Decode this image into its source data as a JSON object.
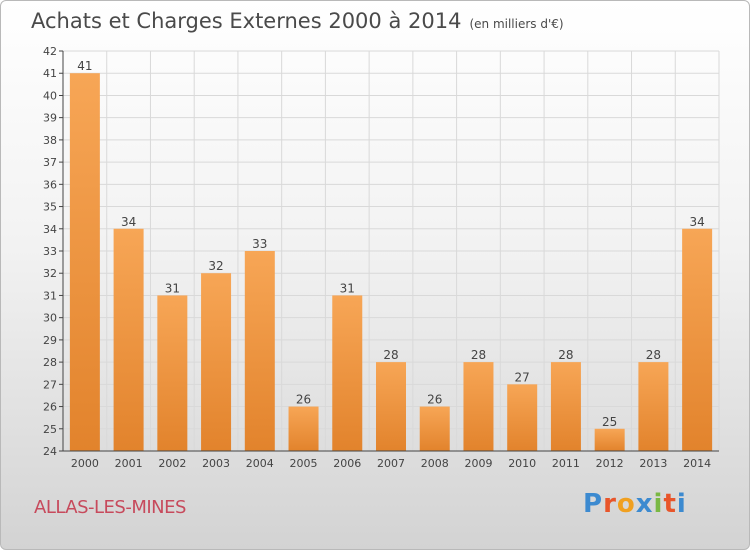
{
  "header": {
    "title": "Achats et Charges Externes 2000 à 2014",
    "unit": "(en milliers d'€)"
  },
  "commune": "ALLAS-LES-MINES",
  "logo": {
    "text": "Proxiti",
    "colors": [
      "#3c8ad0",
      "#e8552a",
      "#f0a020",
      "#3c8ad0",
      "#7ab844",
      "#e8552a",
      "#3c8ad0"
    ]
  },
  "colors": {
    "bar_light": "#f7a656",
    "bar_dark": "#e2832c",
    "grid": "#d9d9d9",
    "axis": "#444444",
    "text": "#444444"
  },
  "chart_data": {
    "type": "bar",
    "title": "Achats et Charges Externes 2000 à 2014",
    "subtitle": "(en milliers d'€)",
    "xlabel": "",
    "ylabel": "",
    "categories": [
      "2000",
      "2001",
      "2002",
      "2003",
      "2004",
      "2005",
      "2006",
      "2007",
      "2008",
      "2009",
      "2010",
      "2011",
      "2012",
      "2013",
      "2014"
    ],
    "values": [
      41,
      34,
      31,
      32,
      33,
      26,
      31,
      28,
      26,
      28,
      27,
      28,
      25,
      28,
      34
    ],
    "data_labels": [
      "41",
      "34",
      "31",
      "32",
      "33",
      "26",
      "31",
      "28",
      "26",
      "28",
      "27",
      "28",
      "25",
      "28",
      "34"
    ],
    "ylim": [
      24,
      42
    ],
    "yticks": [
      24,
      25,
      26,
      27,
      28,
      29,
      30,
      31,
      32,
      33,
      34,
      35,
      36,
      37,
      38,
      39,
      40,
      41,
      42
    ],
    "grid": true
  }
}
